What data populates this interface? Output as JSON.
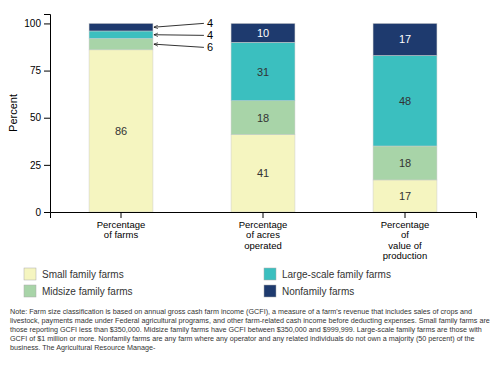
{
  "chart_data": {
    "type": "bar",
    "stacked": true,
    "data_labels": true,
    "categories": [
      "Percentage\nof farms",
      "Percentage\nof acres\noperated",
      "Percentage\nof\nvalue of\nproduction"
    ],
    "series": [
      {
        "name": "Small family farms",
        "color": "#f5f5c0",
        "values": [
          86,
          41,
          17
        ]
      },
      {
        "name": "Midsize family farms",
        "color": "#a8d4a8",
        "values": [
          6,
          18,
          18
        ]
      },
      {
        "name": "Large-scale family farms",
        "color": "#3bbfbf",
        "values": [
          4,
          31,
          48
        ]
      },
      {
        "name": "Nonfamily farms",
        "color": "#1e3a6e",
        "values": [
          4,
          10,
          17
        ]
      }
    ],
    "ylabel": "Percent",
    "ylim": [
      0,
      105
    ],
    "yticks": [
      0,
      25,
      50,
      75,
      100
    ],
    "note": "Note: Farm size classification is based on annual gross cash farm income (GCFI), a measure of a farm's revenue that includes sales of crops and livestock, payments made under Federal agricultural programs, and other farm-related cash income before deducting expenses. Small family farms are those reporting GCFI less than $350,000. Midsize family farms have GCFI between $350,000 and $999,999. Large-scale family farms are those with GCFI of $1 million or more. Nonfamily farms are any farm where any operator and any related individuals do not own a majority (50 percent) of the business. The Agricultural Resource Manage-"
  }
}
